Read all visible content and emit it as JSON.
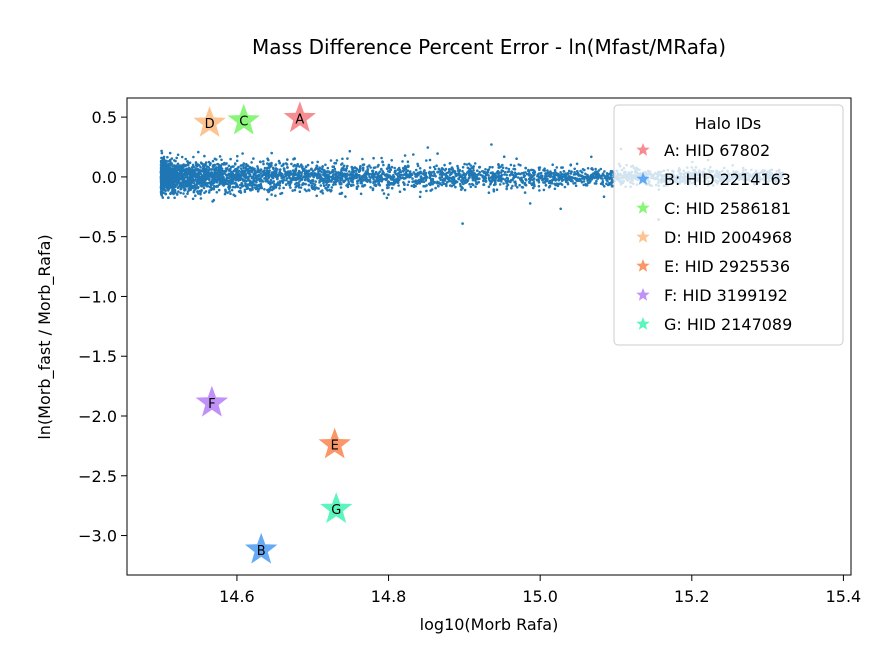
{
  "chart_data": {
    "type": "scatter",
    "title": "Mass Difference Percent Error - ln(Mfast/MRafa)",
    "xlabel": "log10(Morb Rafa)",
    "ylabel": "ln(Morb_fast / Morb_Rafa)",
    "xlim": [
      14.455,
      15.41
    ],
    "ylim": [
      -3.33,
      0.66
    ],
    "xticks": [
      "14.6",
      "14.8",
      "15.0",
      "15.2",
      "15.4"
    ],
    "xtick_values": [
      14.6,
      14.8,
      15.0,
      15.2,
      15.4
    ],
    "yticks": [
      "0.5",
      "0.0",
      "−0.5",
      "−1.0",
      "−1.5",
      "−2.0",
      "−2.5",
      "−3.0"
    ],
    "ytick_values": [
      0.5,
      0.0,
      -0.5,
      -1.0,
      -1.5,
      -2.0,
      -2.5,
      -3.0
    ],
    "grid": false,
    "scatter_color": "#1f77b4",
    "scatter_description_points": {
      "x_range": [
        14.5,
        15.35
      ],
      "center_y": 0.0,
      "spread_note": "dense cloud, narrowing with increasing x"
    },
    "series": [
      {
        "name": "Halo IDs",
        "x": [],
        "y": []
      }
    ],
    "halos": [
      {
        "label": "A",
        "legend": "A: HID 67802",
        "x": 14.683,
        "y": 0.49,
        "color": "#f4797d"
      },
      {
        "label": "B",
        "legend": "B: HID 2214163",
        "x": 14.632,
        "y": -3.12,
        "color": "#4b9bf5"
      },
      {
        "label": "C",
        "legend": "C: HID 2586181",
        "x": 14.609,
        "y": 0.47,
        "color": "#74f561"
      },
      {
        "label": "D",
        "legend": "D: HID 2004968",
        "x": 14.564,
        "y": 0.45,
        "color": "#fdba7e"
      },
      {
        "label": "E",
        "legend": "E: HID 2925536",
        "x": 14.729,
        "y": -2.24,
        "color": "#f9844c"
      },
      {
        "label": "F",
        "legend": "F: HID 3199192",
        "x": 14.567,
        "y": -1.89,
        "color": "#b57ef6"
      },
      {
        "label": "G",
        "legend": "G: HID 2147089",
        "x": 14.731,
        "y": -2.78,
        "color": "#41f3b3"
      }
    ],
    "legend_title": "Halo IDs",
    "legend_position": "top-right"
  }
}
